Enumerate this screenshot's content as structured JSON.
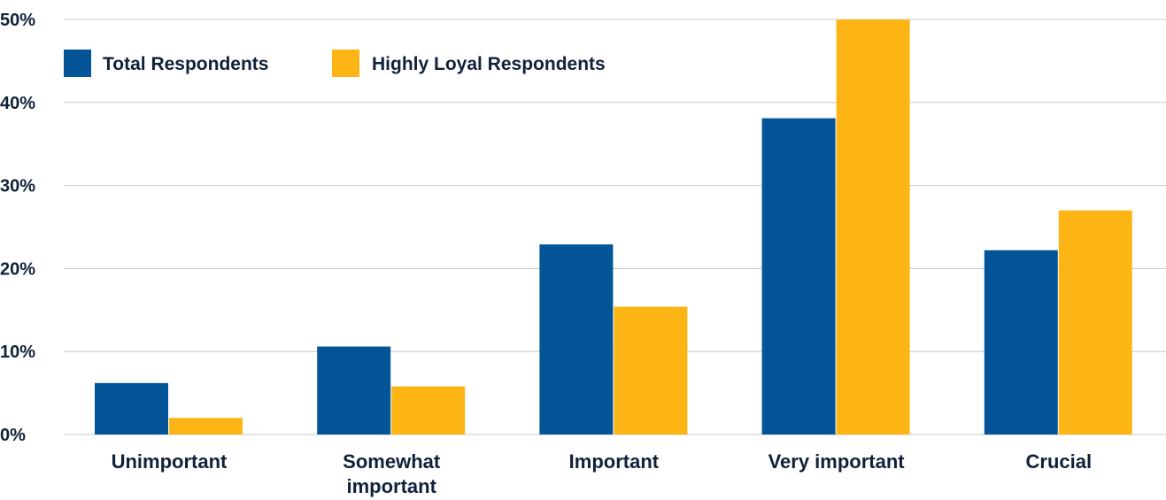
{
  "chart_data": {
    "type": "bar",
    "title": "",
    "xlabel": "",
    "ylabel": "",
    "ylim": [
      0,
      50
    ],
    "y_ticks": [
      0,
      10,
      20,
      30,
      40,
      50
    ],
    "y_tick_labels": [
      "0%",
      "10%",
      "20%",
      "30%",
      "40%",
      "50%"
    ],
    "grid": true,
    "legend_position": "top-left",
    "categories": [
      [
        "Unimportant"
      ],
      [
        "Somewhat",
        "important"
      ],
      [
        "Important"
      ],
      [
        "Very important"
      ],
      [
        "Crucial"
      ]
    ],
    "series": [
      {
        "name": "Total Respondents",
        "color": "#045597",
        "values": [
          6.2,
          10.6,
          22.9,
          38.1,
          22.2
        ]
      },
      {
        "name": "Highly Loyal Respondents",
        "color": "#FDB515",
        "values": [
          2.0,
          5.8,
          15.4,
          50.0,
          27.0
        ]
      }
    ]
  }
}
